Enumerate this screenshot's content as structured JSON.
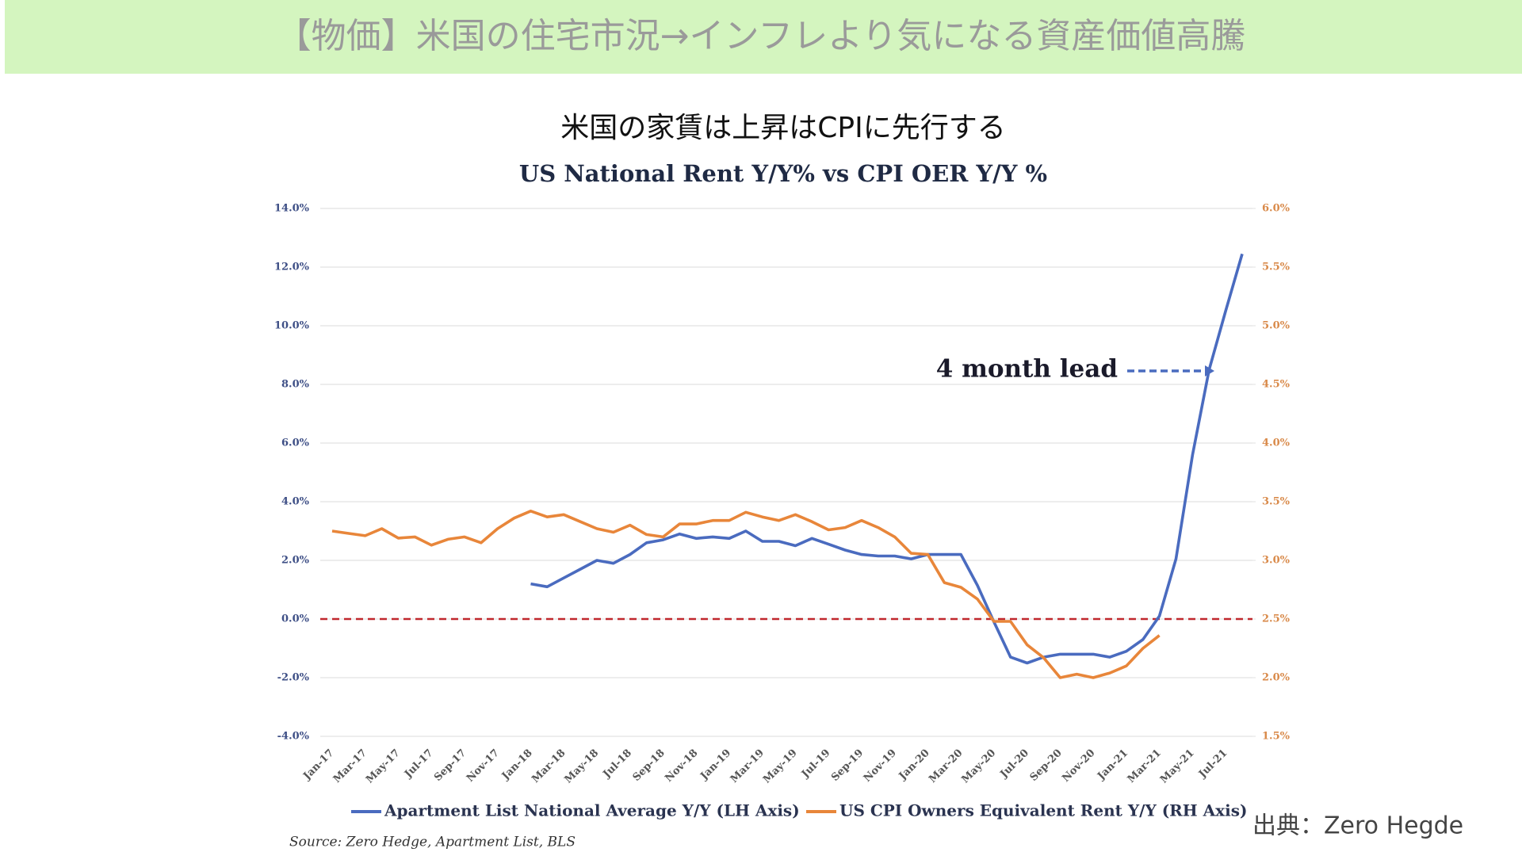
{
  "header": {
    "title": "【物価】米国の住宅市況→インフレより気になる資産価値高騰"
  },
  "chart_data": {
    "type": "line",
    "title": "米国の家賃は上昇はCPIに先行する",
    "subtitle": "US National Rent Y/Y%  vs CPI OER Y/Y %",
    "categories": [
      "Jan-17",
      null,
      "Mar-17",
      null,
      "May-17",
      null,
      "Jul-17",
      null,
      "Sep-17",
      null,
      "Nov-17",
      null,
      "Jan-18",
      null,
      "Mar-18",
      null,
      "May-18",
      null,
      "Jul-18",
      null,
      "Sep-18",
      null,
      "Nov-18",
      null,
      "Jan-19",
      null,
      "Mar-19",
      null,
      "May-19",
      null,
      "Jul-19",
      null,
      "Sep-19",
      null,
      "Nov-19",
      null,
      "Jan-20",
      null,
      "Mar-20",
      null,
      "May-20",
      null,
      "Jul-20",
      null,
      "Sep-20",
      null,
      "Nov-20",
      null,
      "Jan-21",
      null,
      "Mar-21",
      null,
      "May-21",
      null,
      "Jul-21",
      null
    ],
    "series": [
      {
        "name": "Apartment List  National Average Y/Y (LH Axis)",
        "color": "#4a6bbf",
        "axis": "y",
        "values": [
          null,
          null,
          null,
          null,
          null,
          null,
          null,
          null,
          null,
          null,
          null,
          null,
          1.2,
          1.1,
          1.4,
          1.7,
          2.0,
          1.9,
          2.2,
          2.6,
          2.7,
          2.9,
          2.75,
          2.8,
          2.75,
          3.0,
          2.65,
          2.65,
          2.5,
          2.75,
          2.55,
          2.35,
          2.2,
          2.15,
          2.15,
          2.05,
          2.2,
          2.2,
          2.2,
          1.15,
          -0.1,
          -1.3,
          -1.5,
          -1.3,
          -1.2,
          -1.2,
          -1.2,
          -1.3,
          -1.1,
          -0.7,
          0.1,
          2.05,
          5.6,
          8.5,
          10.5,
          12.45
        ]
      },
      {
        "name": "US CPI Owners Equivalent Rent Y/Y (RH Axis)",
        "color": "#e8863a",
        "axis": "y2",
        "values": [
          3.25,
          3.23,
          3.21,
          3.27,
          3.19,
          3.2,
          3.13,
          3.18,
          3.2,
          3.15,
          3.27,
          3.36,
          3.42,
          3.37,
          3.39,
          3.33,
          3.27,
          3.24,
          3.3,
          3.22,
          3.2,
          3.31,
          3.31,
          3.34,
          3.34,
          3.41,
          3.37,
          3.34,
          3.39,
          3.33,
          3.26,
          3.28,
          3.34,
          3.28,
          3.2,
          3.06,
          3.05,
          2.81,
          2.77,
          2.67,
          2.48,
          2.48,
          2.28,
          2.17,
          2.0,
          2.03,
          2.0,
          2.04,
          2.1,
          2.25,
          2.36,
          null,
          null,
          null,
          null,
          null
        ]
      }
    ],
    "ylim": [
      -4,
      14
    ],
    "yticks": [
      {
        "value": -4,
        "label": "-4.0%"
      },
      {
        "value": -2,
        "label": "-2.0%"
      },
      {
        "value": 0,
        "label": "0.0%"
      },
      {
        "value": 2,
        "label": "2.0%"
      },
      {
        "value": 4,
        "label": "4.0%"
      },
      {
        "value": 6,
        "label": "6.0%"
      },
      {
        "value": 8,
        "label": "8.0%"
      },
      {
        "value": 10,
        "label": "10.0%"
      },
      {
        "value": 12,
        "label": "12.0%"
      },
      {
        "value": 14,
        "label": "14.0%"
      }
    ],
    "y2lim": [
      1.5,
      6
    ],
    "y2ticks": [
      {
        "value": 1.5,
        "label": "1.5%"
      },
      {
        "value": 2,
        "label": "2.0%"
      },
      {
        "value": 2.5,
        "label": "2.5%"
      },
      {
        "value": 3,
        "label": "3.0%"
      },
      {
        "value": 3.5,
        "label": "3.5%"
      },
      {
        "value": 4,
        "label": "4.0%"
      },
      {
        "value": 4.5,
        "label": "4.5%"
      },
      {
        "value": 5,
        "label": "5.0%"
      },
      {
        "value": 5.5,
        "label": "5.5%"
      },
      {
        "value": 6,
        "label": "6.0%"
      }
    ],
    "grid": true,
    "reference_line": {
      "value": 0,
      "color": "#c0282d"
    },
    "annotation": "4 month lead",
    "legend": "bottom",
    "source": "Source: Zero Hedge, Apartment List, BLS"
  },
  "credit": "出典：Zero Hegde"
}
